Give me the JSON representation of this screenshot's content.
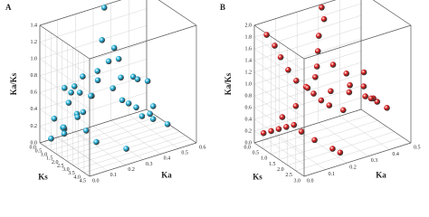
{
  "chart_data": [
    {
      "type": "scatter3d",
      "panel_label": "A",
      "zlabel": "Ka/Ks",
      "xlabel": "Ks",
      "ylabel": "Ka",
      "color": "#22b2dc",
      "xlim": [
        0,
        4.5
      ],
      "ylim": [
        0,
        0.6
      ],
      "zlim": [
        0,
        1.4
      ],
      "xticks": [
        {
          "value": 0,
          "label": "0.0"
        },
        0.5,
        {
          "value": 1,
          "label": "1.0"
        },
        1.5,
        {
          "value": 2,
          "label": "2.0"
        },
        2.5,
        {
          "value": 3,
          "label": "3.0"
        },
        3.5,
        {
          "value": 4,
          "label": "4.0"
        },
        4.5
      ],
      "yticks": [
        {
          "value": 0,
          "label": "0.0"
        },
        0.1,
        0.2,
        0.3,
        0.4,
        0.5,
        0.6
      ],
      "zticks": [
        {
          "value": 0,
          "label": "0.0"
        },
        0.2,
        0.4,
        0.6,
        0.8,
        {
          "value": 1,
          "label": "1.0"
        },
        1.2,
        1.4
      ],
      "x": [
        0.5,
        1.0,
        1.2,
        1.5,
        1.8,
        2.0,
        2.2,
        2.5,
        0.8,
        1.1,
        1.4,
        1.7,
        2.1,
        2.4,
        2.8,
        3.0,
        0.6,
        0.9,
        1.3,
        1.6,
        1.9,
        2.3,
        2.6,
        3.2,
        3.5,
        1.0,
        1.5,
        2.0,
        0.7,
        1.2,
        1.8,
        2.7,
        0.4,
        3.8,
        1.6,
        2.2,
        0.9,
        1.4,
        2.9,
        0.3
      ],
      "y": [
        0.05,
        0.1,
        0.12,
        0.15,
        0.18,
        0.2,
        0.25,
        0.3,
        0.08,
        0.14,
        0.2,
        0.22,
        0.28,
        0.35,
        0.4,
        0.45,
        0.1,
        0.12,
        0.16,
        0.25,
        0.3,
        0.32,
        0.38,
        0.42,
        0.5,
        0.3,
        0.35,
        0.4,
        0.02,
        0.06,
        0.1,
        0.15,
        0.2,
        0.25,
        0.45,
        0.5,
        0.55,
        0.05,
        0.08,
        0.12
      ],
      "z": [
        0.3,
        0.5,
        0.7,
        0.4,
        0.6,
        0.9,
        1.0,
        0.8,
        0.2,
        0.35,
        0.55,
        0.75,
        0.65,
        0.45,
        0.3,
        0.25,
        0.15,
        0.6,
        0.8,
        1.2,
        1.1,
        0.5,
        0.4,
        0.35,
        0.2,
        1.5,
        0.9,
        0.7,
        0.1,
        0.25,
        0.4,
        0.15,
        0.5,
        0.1,
        0.6,
        0.3,
        0.45,
        0.2,
        0.35,
        0.6
      ]
    },
    {
      "type": "scatter3d",
      "panel_label": "B",
      "zlabel": "Ka/Ks",
      "xlabel": "Ks",
      "ylabel": "Ka",
      "color": "#dc1a1a",
      "xlim": [
        0,
        3
      ],
      "ylim": [
        0,
        0.5
      ],
      "zlim": [
        0,
        2
      ],
      "xticks": [
        {
          "value": 0,
          "label": "0.0"
        },
        0.5,
        {
          "value": 1,
          "label": "1.0"
        },
        1.5,
        {
          "value": 2,
          "label": "2.0"
        },
        2.5,
        {
          "value": 3,
          "label": "3.0"
        }
      ],
      "yticks": [
        {
          "value": 0,
          "label": "0.0"
        },
        0.1,
        0.2,
        0.3,
        0.4,
        0.5
      ],
      "zticks": [
        {
          "value": 0,
          "label": "0.0"
        },
        0.2,
        0.4,
        0.6,
        0.8,
        {
          "value": 1,
          "label": "1.0"
        },
        1.2,
        1.4,
        1.6,
        1.8,
        {
          "value": 2,
          "label": "2.0"
        }
      ],
      "x": [
        0.1,
        0.2,
        0.3,
        0.5,
        0.6,
        0.8,
        1.0,
        1.2,
        1.3,
        1.5,
        0.4,
        0.7,
        0.9,
        1.1,
        1.4,
        1.6,
        1.8,
        2.0,
        2.2,
        0.2,
        0.6,
        0.8,
        1.0,
        1.2,
        0.3,
        0.5,
        0.7,
        0.9,
        1.1,
        1.3,
        1.7,
        2.4,
        2.6,
        0.1,
        0.4,
        1.9,
        2.1,
        0.8,
        1.0,
        0.6
      ],
      "y": [
        0.05,
        0.08,
        0.1,
        0.12,
        0.15,
        0.18,
        0.2,
        0.22,
        0.25,
        0.3,
        0.1,
        0.14,
        0.18,
        0.2,
        0.26,
        0.32,
        0.38,
        0.42,
        0.45,
        0.3,
        0.28,
        0.24,
        0.22,
        0.2,
        0.02,
        0.04,
        0.06,
        0.08,
        0.1,
        0.12,
        0.15,
        0.18,
        0.2,
        0.35,
        0.4,
        0.3,
        0.35,
        0.45,
        0.48,
        0.5
      ],
      "z": [
        1.8,
        1.6,
        1.4,
        1.2,
        1.0,
        0.9,
        0.8,
        0.7,
        0.6,
        0.5,
        0.4,
        0.6,
        0.9,
        1.1,
        1.3,
        0.8,
        0.7,
        0.6,
        0.5,
        2.0,
        1.9,
        1.7,
        1.5,
        1.3,
        0.2,
        0.25,
        0.3,
        0.35,
        0.4,
        0.3,
        0.2,
        0.15,
        0.1,
        0.5,
        0.8,
        1.0,
        1.2,
        0.6,
        0.4,
        0.3
      ]
    }
  ]
}
